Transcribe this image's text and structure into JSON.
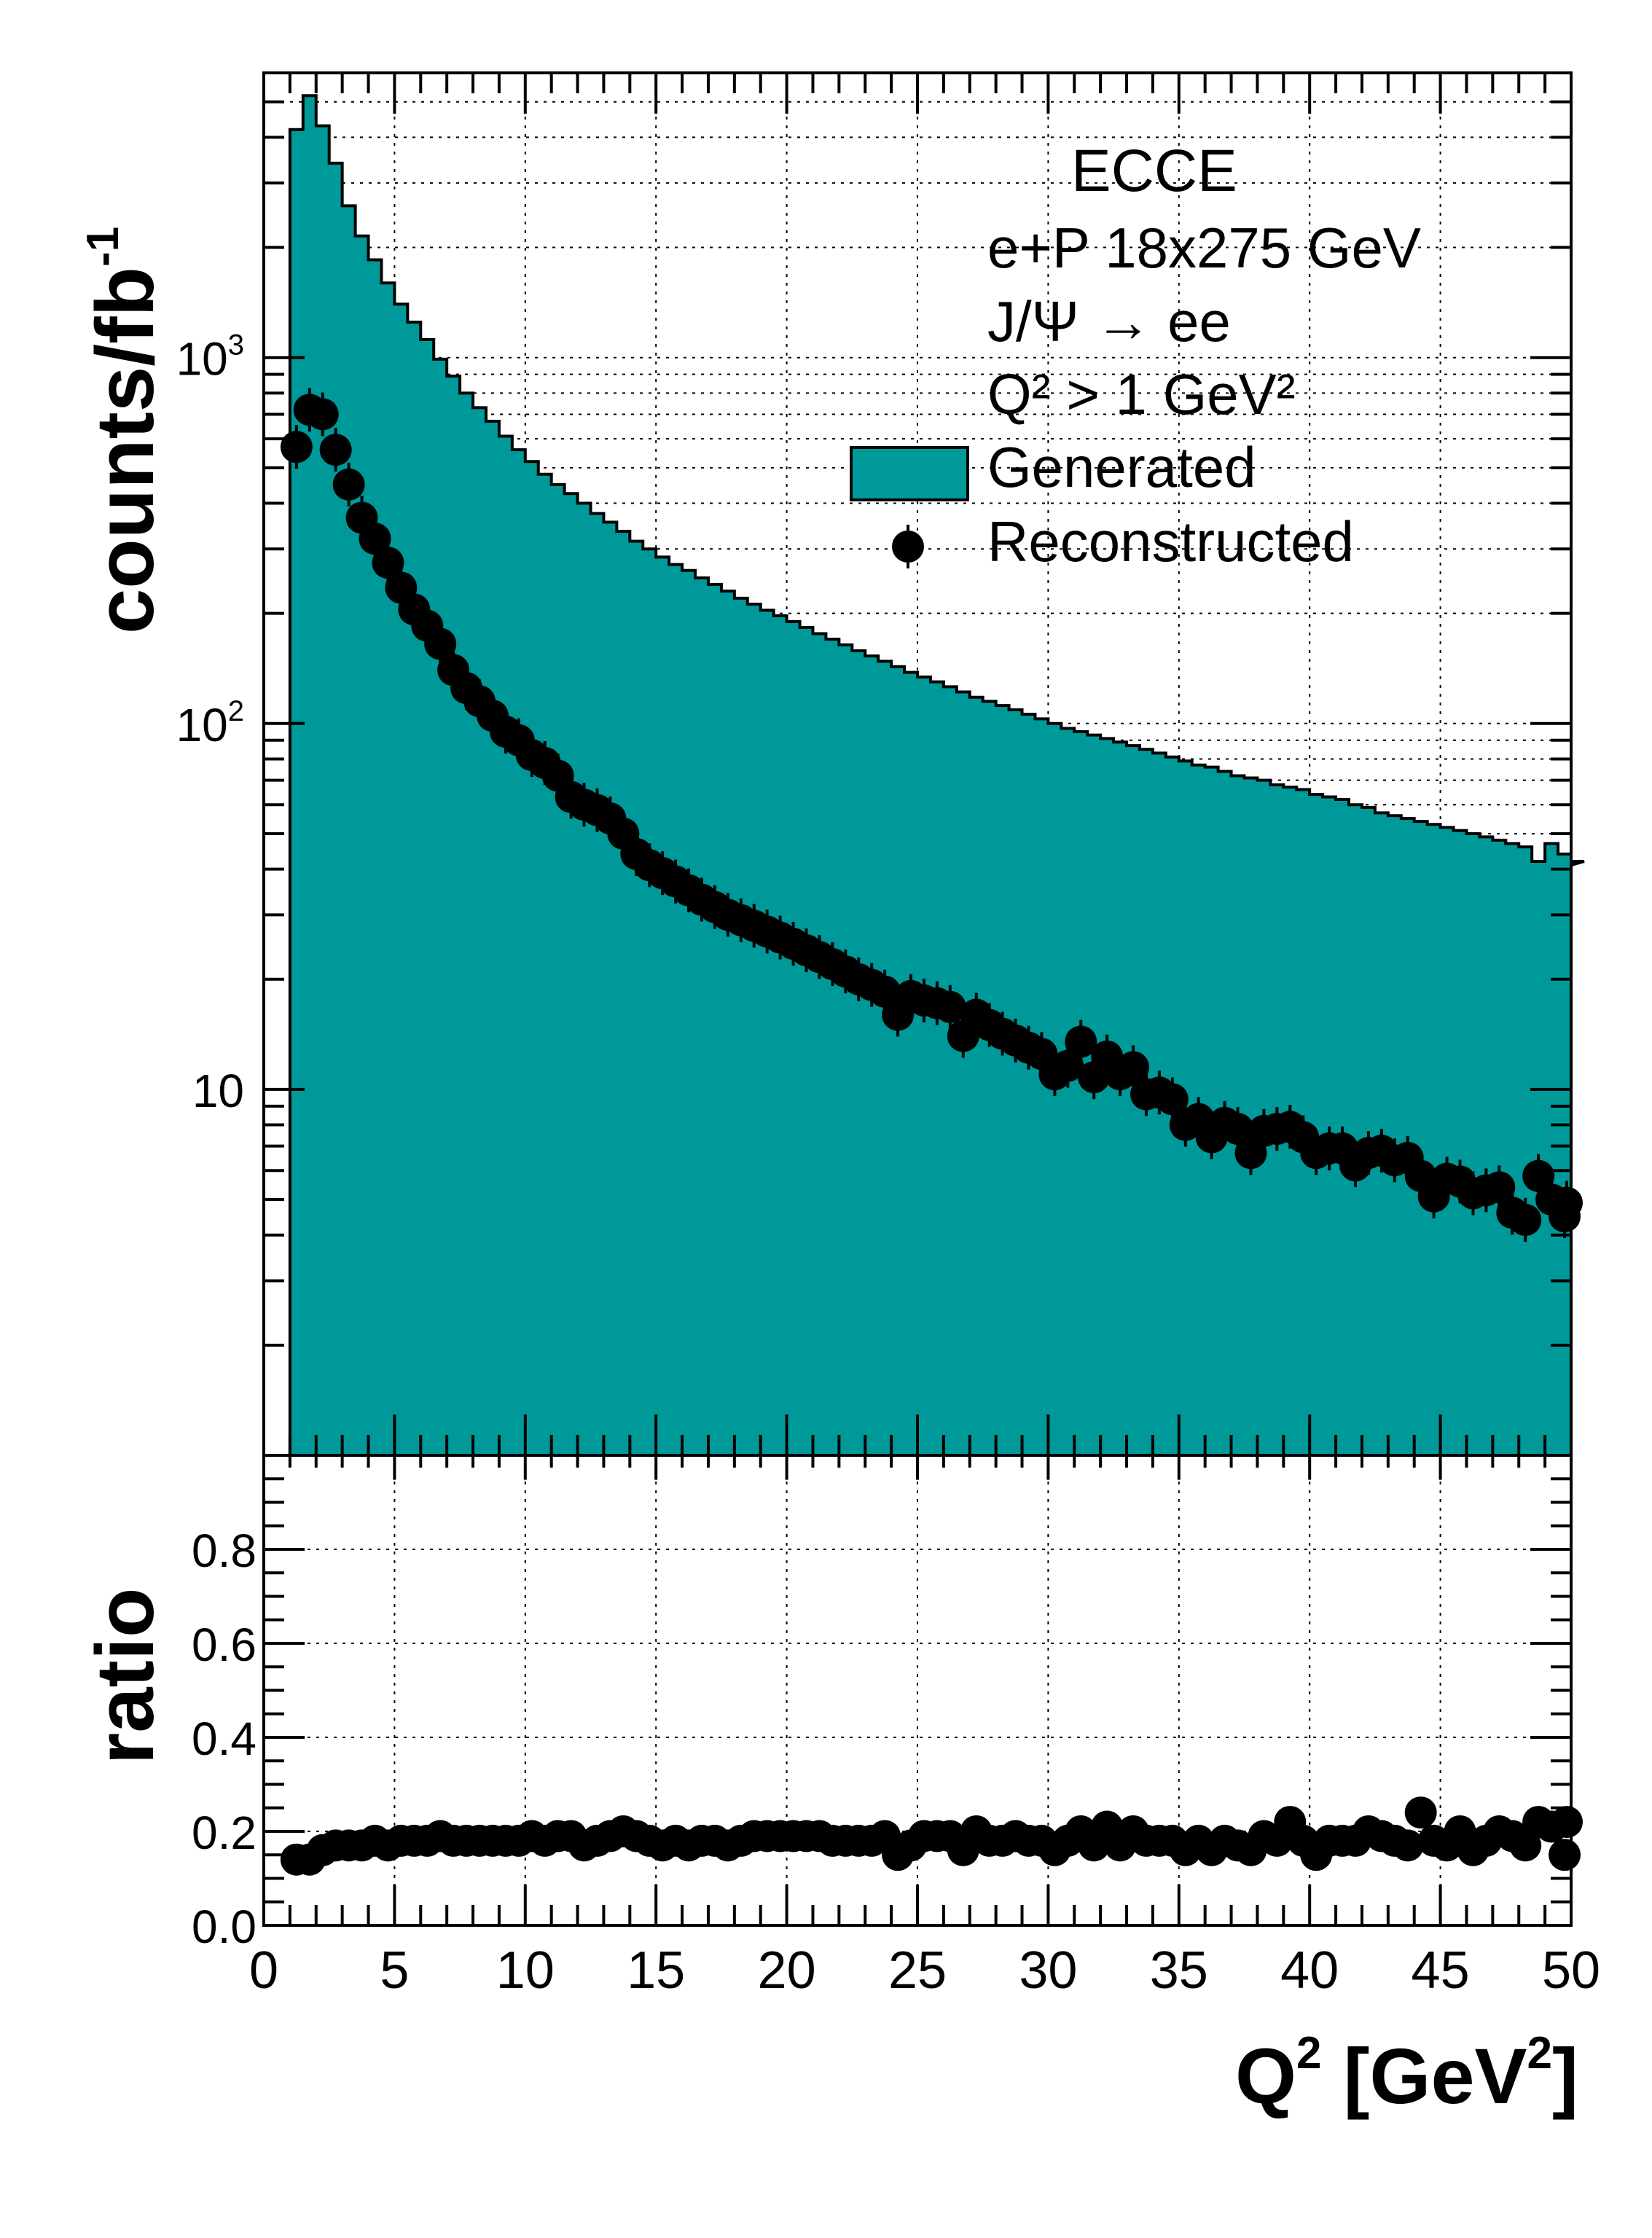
{
  "chart_data": [
    {
      "type": "histogram",
      "panel": "top",
      "ylabel": "counts/fb",
      "ylabel_sup": "-1",
      "yscale": "log",
      "xlim": [
        0,
        50
      ],
      "ylim": [
        1.0,
        6000
      ],
      "y_tick_labels": [
        {
          "value": 10,
          "base": "10",
          "sup": ""
        },
        {
          "value": 100,
          "base": "10",
          "sup": "2"
        },
        {
          "value": 1000,
          "base": "10",
          "sup": "3"
        }
      ],
      "grid": true,
      "legend_position": "top-right",
      "annotations": [
        "ECCE",
        "e+P 18x275 GeV",
        "J/Ψ → ee",
        "Q² > 1 GeV²"
      ],
      "bin_edges_start": 1.0,
      "bin_width": 0.5,
      "series": [
        {
          "name": "Generated",
          "style": "filled-step",
          "color": "#009999",
          "values": [
            4200,
            5200,
            4300,
            3400,
            2600,
            2150,
            1850,
            1600,
            1400,
            1250,
            1120,
            990,
            890,
            800,
            730,
            670,
            610,
            560,
            520,
            480,
            450,
            425,
            400,
            375,
            355,
            335,
            315,
            300,
            285,
            272,
            262,
            250,
            240,
            230,
            220,
            212,
            204,
            197,
            190,
            183,
            176,
            170,
            164,
            158,
            153,
            148,
            143,
            138,
            134,
            130,
            126,
            122,
            118,
            115,
            112,
            109,
            106,
            103,
            100,
            97,
            95,
            93,
            91,
            89,
            87,
            85,
            83,
            81,
            79,
            77,
            76,
            74,
            72,
            71,
            70,
            68,
            67,
            66,
            64,
            63,
            62,
            60,
            59,
            57,
            56,
            55,
            54,
            53,
            52,
            51,
            50,
            49,
            48,
            47,
            46,
            42,
            47,
            44,
            41,
            42
          ]
        },
        {
          "name": "Reconstructed",
          "style": "markers-error",
          "color": "#000000",
          "points": [
            [
              1.0,
              570
            ],
            [
              1.5,
              720
            ],
            [
              2.0,
              700
            ],
            [
              2.5,
              560
            ],
            [
              3.0,
              450
            ],
            [
              3.5,
              365
            ],
            [
              4.0,
              320
            ],
            [
              4.5,
              275
            ],
            [
              5.0,
              235
            ],
            [
              5.5,
              205
            ],
            [
              6.0,
              185
            ],
            [
              6.5,
              165
            ],
            [
              7.0,
              140
            ],
            [
              7.5,
              125
            ],
            [
              8.0,
              115
            ],
            [
              8.5,
              105
            ],
            [
              9.0,
              95
            ],
            [
              9.5,
              90
            ],
            [
              10.0,
              82
            ],
            [
              10.5,
              78
            ],
            [
              11.0,
              72
            ],
            [
              11.5,
              63
            ],
            [
              12.0,
              60
            ],
            [
              12.5,
              58
            ],
            [
              13.0,
              55
            ],
            [
              13.5,
              50
            ],
            [
              14.0,
              44
            ],
            [
              14.5,
              41
            ],
            [
              15.0,
              39
            ],
            [
              15.5,
              37
            ],
            [
              16.0,
              35
            ],
            [
              16.5,
              33
            ],
            [
              17.0,
              31.5
            ],
            [
              17.5,
              30
            ],
            [
              18.0,
              29
            ],
            [
              18.5,
              28
            ],
            [
              19.0,
              27
            ],
            [
              19.5,
              26
            ],
            [
              20.0,
              25
            ],
            [
              20.5,
              24
            ],
            [
              21.0,
              23
            ],
            [
              21.5,
              22
            ],
            [
              22.0,
              21
            ],
            [
              22.5,
              20
            ],
            [
              23.0,
              19.3
            ],
            [
              23.5,
              18.5
            ],
            [
              24.0,
              16
            ],
            [
              24.5,
              18
            ],
            [
              25.0,
              17.5
            ],
            [
              25.5,
              17.2
            ],
            [
              26.0,
              16.8
            ],
            [
              26.5,
              14
            ],
            [
              27.0,
              16
            ],
            [
              27.5,
              15
            ],
            [
              28.0,
              14.2
            ],
            [
              28.5,
              13.6
            ],
            [
              29.0,
              13
            ],
            [
              29.5,
              12.5
            ],
            [
              30.0,
              11
            ],
            [
              30.5,
              11.6
            ],
            [
              31.0,
              13.5
            ],
            [
              31.5,
              10.8
            ],
            [
              32.0,
              12.3
            ],
            [
              32.5,
              11
            ],
            [
              33.0,
              11.5
            ],
            [
              33.5,
              9.7
            ],
            [
              34.0,
              9.8
            ],
            [
              34.5,
              9.4
            ],
            [
              35.0,
              8
            ],
            [
              35.5,
              8.3
            ],
            [
              36.0,
              7.4
            ],
            [
              36.5,
              8.1
            ],
            [
              37.0,
              7.8
            ],
            [
              37.5,
              6.7
            ],
            [
              38.0,
              7.7
            ],
            [
              38.5,
              7.8
            ],
            [
              39.0,
              7.9
            ],
            [
              39.5,
              7.4
            ],
            [
              40.0,
              6.7
            ],
            [
              40.5,
              6.9
            ],
            [
              41.0,
              6.9
            ],
            [
              41.5,
              6.2
            ],
            [
              42.0,
              6.7
            ],
            [
              42.5,
              6.8
            ],
            [
              43.0,
              6.4
            ],
            [
              43.5,
              6.5
            ],
            [
              44.0,
              5.8
            ],
            [
              44.5,
              5.1
            ],
            [
              45.0,
              5.7
            ],
            [
              45.5,
              5.6
            ],
            [
              46.0,
              5.2
            ],
            [
              46.5,
              5.3
            ],
            [
              47.0,
              5.4
            ],
            [
              47.5,
              4.6
            ],
            [
              48.0,
              4.4
            ],
            [
              48.5,
              5.8
            ],
            [
              49.0,
              5.0
            ],
            [
              49.5,
              4.5
            ],
            [
              50.0,
              4.9
            ]
          ]
        }
      ]
    },
    {
      "type": "scatter",
      "panel": "bottom",
      "ylabel": "ratio",
      "xlabel": "Q",
      "xlabel_sup": "2",
      "xlabel_unit": "[GeV",
      "xlabel_unit_sup": "2",
      "xlabel_unit_end": "]",
      "xlim": [
        0,
        50
      ],
      "ylim": [
        0.0,
        1.0
      ],
      "x_ticks": [
        "0",
        "5",
        "10",
        "15",
        "20",
        "25",
        "30",
        "35",
        "40",
        "45",
        "50"
      ],
      "y_ticks": [
        "0.0",
        "0.2",
        "0.4",
        "0.6",
        "0.8"
      ],
      "grid": true,
      "series": [
        {
          "name": "ratio",
          "color": "#000000",
          "points": [
            [
              1.0,
              0.14
            ],
            [
              1.5,
              0.14
            ],
            [
              2.0,
              0.16
            ],
            [
              2.5,
              0.17
            ],
            [
              3.0,
              0.17
            ],
            [
              3.5,
              0.17
            ],
            [
              4.0,
              0.18
            ],
            [
              4.5,
              0.17
            ],
            [
              5.0,
              0.18
            ],
            [
              5.5,
              0.18
            ],
            [
              6.0,
              0.18
            ],
            [
              6.5,
              0.19
            ],
            [
              7.0,
              0.18
            ],
            [
              7.5,
              0.18
            ],
            [
              8.0,
              0.18
            ],
            [
              8.5,
              0.18
            ],
            [
              9.0,
              0.18
            ],
            [
              9.5,
              0.18
            ],
            [
              10.0,
              0.19
            ],
            [
              10.5,
              0.18
            ],
            [
              11.0,
              0.19
            ],
            [
              11.5,
              0.19
            ],
            [
              12.0,
              0.17
            ],
            [
              12.5,
              0.18
            ],
            [
              13.0,
              0.19
            ],
            [
              13.5,
              0.2
            ],
            [
              14.0,
              0.19
            ],
            [
              14.5,
              0.18
            ],
            [
              15.0,
              0.17
            ],
            [
              15.5,
              0.18
            ],
            [
              16.0,
              0.17
            ],
            [
              16.5,
              0.18
            ],
            [
              17.0,
              0.18
            ],
            [
              17.5,
              0.17
            ],
            [
              18.0,
              0.18
            ],
            [
              18.5,
              0.19
            ],
            [
              19.0,
              0.19
            ],
            [
              19.5,
              0.19
            ],
            [
              20.0,
              0.19
            ],
            [
              20.5,
              0.19
            ],
            [
              21.0,
              0.19
            ],
            [
              21.5,
              0.18
            ],
            [
              22.0,
              0.18
            ],
            [
              22.5,
              0.18
            ],
            [
              23.0,
              0.18
            ],
            [
              23.5,
              0.19
            ],
            [
              24.0,
              0.15
            ],
            [
              24.5,
              0.17
            ],
            [
              25.0,
              0.19
            ],
            [
              25.5,
              0.19
            ],
            [
              26.0,
              0.19
            ],
            [
              26.5,
              0.16
            ],
            [
              27.0,
              0.2
            ],
            [
              27.5,
              0.18
            ],
            [
              28.0,
              0.18
            ],
            [
              28.5,
              0.19
            ],
            [
              29.0,
              0.18
            ],
            [
              29.5,
              0.18
            ],
            [
              30.0,
              0.16
            ],
            [
              30.5,
              0.18
            ],
            [
              31.0,
              0.2
            ],
            [
              31.5,
              0.17
            ],
            [
              32.0,
              0.21
            ],
            [
              32.5,
              0.17
            ],
            [
              33.0,
              0.2
            ],
            [
              33.5,
              0.18
            ],
            [
              34.0,
              0.18
            ],
            [
              34.5,
              0.18
            ],
            [
              35.0,
              0.16
            ],
            [
              35.5,
              0.18
            ],
            [
              36.0,
              0.16
            ],
            [
              36.5,
              0.18
            ],
            [
              37.0,
              0.17
            ],
            [
              37.5,
              0.16
            ],
            [
              38.0,
              0.19
            ],
            [
              38.5,
              0.18
            ],
            [
              39.0,
              0.22
            ],
            [
              39.5,
              0.18
            ],
            [
              40.0,
              0.15
            ],
            [
              40.5,
              0.18
            ],
            [
              41.0,
              0.18
            ],
            [
              41.5,
              0.18
            ],
            [
              42.0,
              0.2
            ],
            [
              42.5,
              0.19
            ],
            [
              43.0,
              0.18
            ],
            [
              43.5,
              0.17
            ],
            [
              44.0,
              0.24
            ],
            [
              44.5,
              0.18
            ],
            [
              45.0,
              0.17
            ],
            [
              45.5,
              0.2
            ],
            [
              46.0,
              0.16
            ],
            [
              46.5,
              0.18
            ],
            [
              47.0,
              0.2
            ],
            [
              47.5,
              0.19
            ],
            [
              48.0,
              0.17
            ],
            [
              48.5,
              0.22
            ],
            [
              49.0,
              0.21
            ],
            [
              49.5,
              0.15
            ],
            [
              50.0,
              0.22
            ]
          ]
        }
      ]
    }
  ]
}
